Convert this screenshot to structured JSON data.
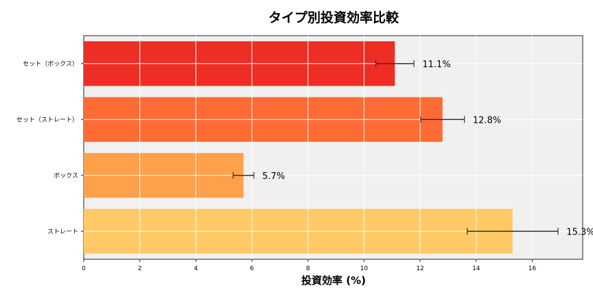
{
  "chart_data": {
    "type": "bar",
    "orientation": "horizontal",
    "title": "タイプ別投資効率比較",
    "xlabel": "投資効率 (%)",
    "ylabel": "",
    "categories": [
      "セット（ボックス）",
      "セット（ストレート）",
      "ボックス",
      "ストレート"
    ],
    "values": [
      11.1,
      12.8,
      5.7,
      15.3
    ],
    "errors": [
      0.68,
      0.78,
      0.37,
      1.62
    ],
    "data_labels": [
      "11.1%",
      "12.8%",
      "5.7%",
      "15.3%"
    ],
    "colors": [
      "#EE2E24",
      "#FF6B35",
      "#FFA04A",
      "#FFC966"
    ],
    "xlim": [
      0,
      17.8
    ],
    "xticks": [
      0,
      2,
      4,
      6,
      8,
      10,
      12,
      14,
      16
    ],
    "grid": true,
    "background": "#F0F0F0"
  }
}
